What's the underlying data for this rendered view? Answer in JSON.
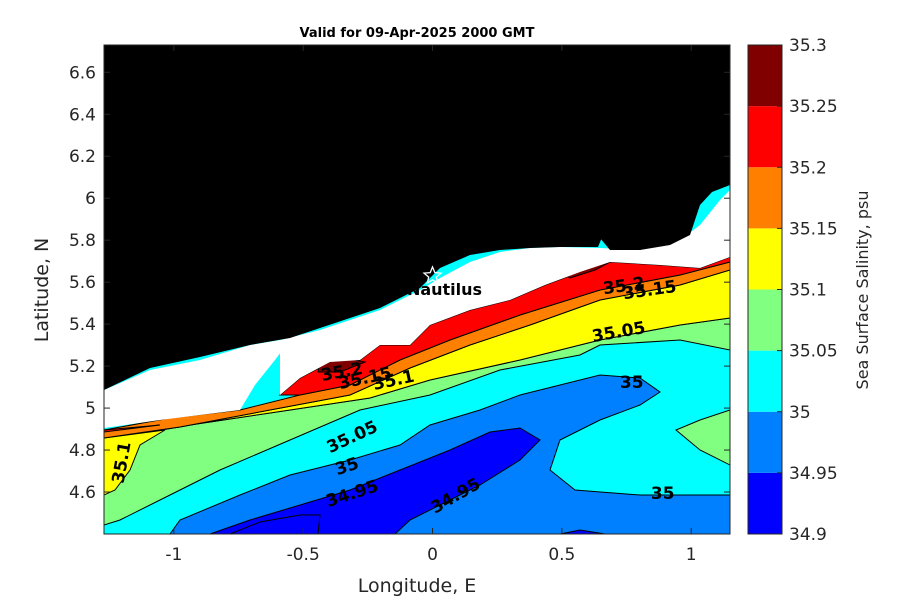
{
  "chart_data": {
    "type": "contour",
    "title": "Valid for 09-Apr-2025 2000 GMT",
    "xlabel": "Longitude, E",
    "ylabel": "Latitude, N",
    "colorbar_label": "Sea Surface Salinity, psu",
    "xlim": [
      -1.27,
      1.15
    ],
    "ylim": [
      4.4,
      6.73
    ],
    "x_ticks": [
      -1,
      -0.5,
      0,
      0.5,
      1
    ],
    "x_tick_labels": [
      "-1",
      "-0.5",
      "0",
      "0.5",
      "1"
    ],
    "y_ticks": [
      4.6,
      4.8,
      5,
      5.2,
      5.4,
      5.6,
      5.8,
      6,
      6.2,
      6.4,
      6.6
    ],
    "y_tick_labels": [
      "4.6",
      "4.8",
      "5",
      "5.2",
      "5.4",
      "5.6",
      "5.8",
      "6",
      "6.2",
      "6.4",
      "6.6"
    ],
    "levels": [
      34.9,
      34.95,
      35,
      35.05,
      35.1,
      35.15,
      35.2,
      35.25,
      35.3
    ],
    "level_labels": [
      "34.9",
      "34.95",
      "35",
      "35.05",
      "35.1",
      "35.15",
      "35.2",
      "35.25",
      "35.3"
    ],
    "band_colors": [
      "#0000ff",
      "#0080ff",
      "#00ffff",
      "#80ff80",
      "#ffff00",
      "#ff8000",
      "#ff0000",
      "#800000"
    ],
    "land_color": "#000000",
    "nodata_color": "#ffffff",
    "grid": false,
    "contour_labels": [
      {
        "text": "35.2",
        "lon": -0.35,
        "lat": 5.17,
        "angle": -10
      },
      {
        "text": "35.15",
        "lon": -0.26,
        "lat": 5.14,
        "angle": -12
      },
      {
        "text": "35.1",
        "lon": -0.15,
        "lat": 5.13,
        "angle": -12
      },
      {
        "text": "35.2",
        "lon": 0.74,
        "lat": 5.58,
        "angle": -8
      },
      {
        "text": "35.15",
        "lon": 0.84,
        "lat": 5.56,
        "angle": -8
      },
      {
        "text": "35.05",
        "lon": 0.72,
        "lat": 5.36,
        "angle": -10
      },
      {
        "text": "35",
        "lon": 0.77,
        "lat": 5.12,
        "angle": 0
      },
      {
        "text": "35.05",
        "lon": -0.31,
        "lat": 4.86,
        "angle": -25
      },
      {
        "text": "35",
        "lon": -0.33,
        "lat": 4.72,
        "angle": -18
      },
      {
        "text": "34.95",
        "lon": -0.31,
        "lat": 4.59,
        "angle": -18
      },
      {
        "text": "34.95",
        "lon": 0.09,
        "lat": 4.58,
        "angle": -30
      },
      {
        "text": "35",
        "lon": 0.89,
        "lat": 4.59,
        "angle": 0
      },
      {
        "text": "35.1",
        "lon": -1.2,
        "lat": 4.74,
        "angle": -80
      }
    ],
    "site": {
      "name": "Nautilus",
      "lon": 0.0,
      "lat": 5.63
    }
  }
}
